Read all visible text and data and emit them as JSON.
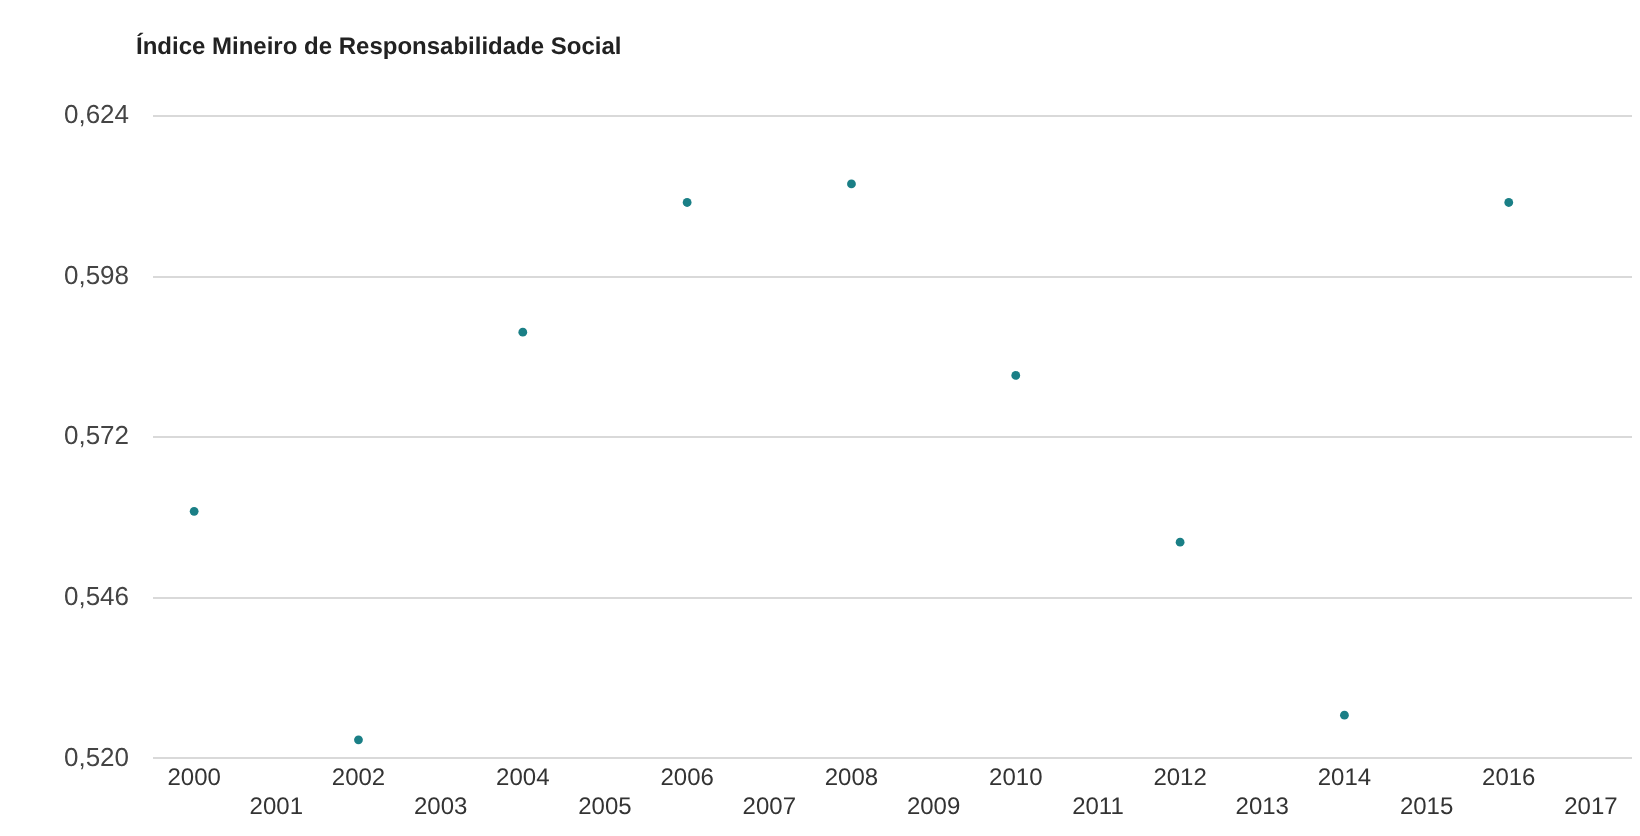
{
  "chart_data": {
    "type": "scatter",
    "title": "Índice Mineiro de Responsabilidade Social",
    "categories": [
      "2000",
      "2001",
      "2002",
      "2003",
      "2004",
      "2005",
      "2006",
      "2007",
      "2008",
      "2009",
      "2010",
      "2011",
      "2012",
      "2013",
      "2014",
      "2015",
      "2016",
      "2017"
    ],
    "series": [
      {
        "color": "#1a7f86",
        "values": [
          0.56,
          null,
          0.523,
          null,
          0.589,
          null,
          0.61,
          null,
          0.613,
          null,
          0.582,
          null,
          0.555,
          null,
          0.527,
          null,
          0.61,
          null
        ]
      }
    ],
    "ylim": [
      0.52,
      0.624
    ],
    "yticks": [
      {
        "value": 0.52,
        "label": "0,520"
      },
      {
        "value": 0.546,
        "label": "0,546"
      },
      {
        "value": 0.572,
        "label": "0,572"
      },
      {
        "value": 0.598,
        "label": "0,598"
      },
      {
        "value": 0.624,
        "label": "0,624"
      }
    ],
    "grid": "y",
    "legend": false,
    "marker": "circle"
  }
}
